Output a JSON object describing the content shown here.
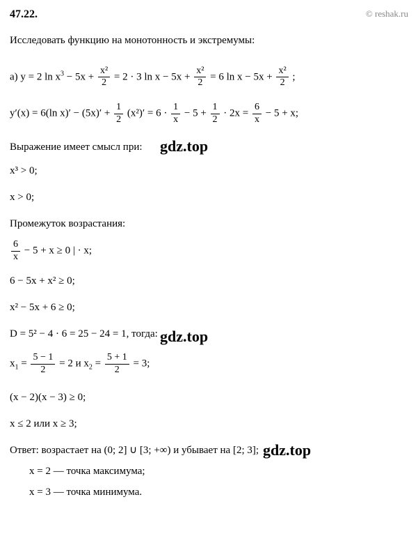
{
  "header": {
    "problem_number": "47.22.",
    "copyright": "© reshak.ru"
  },
  "task": "Исследовать функцию на монотонность и экстремумы:",
  "lines": {
    "line_a_prefix": "а) ",
    "line_a_1": "y = 2 ln x",
    "line_a_2": " − 5x + ",
    "line_a_frac1_num": "x²",
    "line_a_frac1_den": "2",
    "line_a_3": " = 2 · 3 ln x − 5x + ",
    "line_a_frac2_num": "x²",
    "line_a_frac2_den": "2",
    "line_a_4": " = 6 ln x − 5x + ",
    "line_a_frac3_num": "x²",
    "line_a_frac3_den": "2",
    "line_a_5": " ;",
    "line_b_1": "y′(x) = 6(ln x)′ − (5x)′ + ",
    "line_b_frac1_num": "1",
    "line_b_frac1_den": "2",
    "line_b_2": " (x²)′ = 6 · ",
    "line_b_frac2_num": "1",
    "line_b_frac2_den": "x",
    "line_b_3": " − 5 + ",
    "line_b_frac3_num": "1",
    "line_b_frac3_den": "2",
    "line_b_4": " · 2x = ",
    "line_b_frac4_num": "6",
    "line_b_frac4_den": "x",
    "line_b_5": " − 5 + x;",
    "sense_label": "Выражение имеет смысл при:",
    "line_c": "x³ > 0;",
    "line_d": "x > 0;",
    "increase_label": "Промежуток возрастания:",
    "line_e_frac_num": "6",
    "line_e_frac_den": "x",
    "line_e_1": " − 5 + x ≥ 0    | · x;",
    "line_f": "6 − 5x + x² ≥ 0;",
    "line_g": "x² − 5x + 6 ≥ 0;",
    "line_h": "D = 5² − 4 · 6 = 25 − 24 = 1, тогда:",
    "line_i_1": "x",
    "line_i_sub1": "1",
    "line_i_2": " = ",
    "line_i_frac1_num": "5 − 1",
    "line_i_frac1_den": "2",
    "line_i_3": " = 2  и  x",
    "line_i_sub2": "2",
    "line_i_4": " = ",
    "line_i_frac2_num": "5 + 1",
    "line_i_frac2_den": "2",
    "line_i_5": " = 3;",
    "line_j": "(x − 2)(x − 3) ≥ 0;",
    "line_k": "x ≤ 2 или x ≥ 3;",
    "answer_label": "Ответ:  возрастает на (0;  2] ∪ [3;  +∞) и убывает на [2;  3];",
    "answer_2": "x = 2 — точка максимума;",
    "answer_3": "x = 3 — точка минимума."
  },
  "watermark": "gdz.top"
}
